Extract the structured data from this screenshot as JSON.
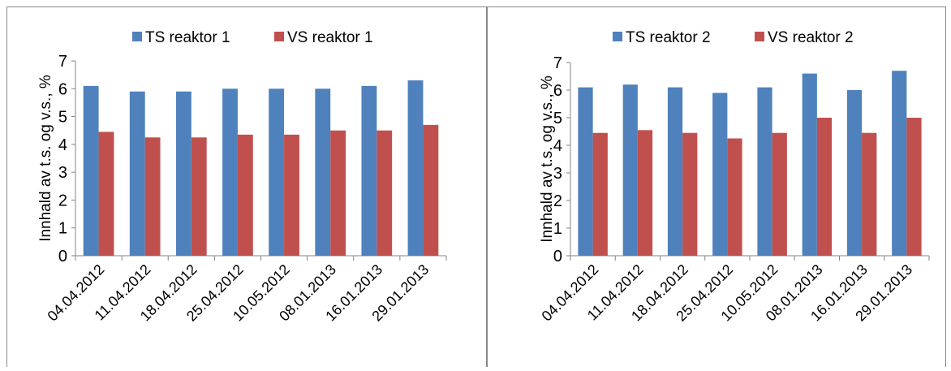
{
  "chart_data": [
    {
      "type": "bar",
      "y_label": "Innhald av t.s. og v.s., %",
      "categories": [
        "04.04.2012",
        "11.04.2012",
        "18.04.2012",
        "25.04.2012",
        "10.05.2012",
        "08.01.2013",
        "16.01.2013",
        "29.01.2013"
      ],
      "series": [
        {
          "name": "TS reaktor 1",
          "color": "#4f81bd",
          "values": [
            6.1,
            5.9,
            5.9,
            6.0,
            6.0,
            6.0,
            6.1,
            6.3
          ]
        },
        {
          "name": "VS reaktor 1",
          "color": "#c0504d",
          "values": [
            4.45,
            4.25,
            4.25,
            4.35,
            4.35,
            4.5,
            4.5,
            4.7
          ]
        }
      ],
      "ylim": [
        0,
        7
      ],
      "yticks": [
        0,
        1,
        2,
        3,
        4,
        5,
        6,
        7
      ],
      "legend": "top"
    },
    {
      "type": "bar",
      "y_label": "Innhald av t.s. og v.s., %",
      "categories": [
        "04.04.2012",
        "11.04.2012",
        "18.04.2012",
        "25.04.2012",
        "10.05.2012",
        "08.01.2013",
        "16.01.2013",
        "29.01.2013"
      ],
      "series": [
        {
          "name": "TS reaktor 2",
          "color": "#4f81bd",
          "values": [
            6.1,
            6.2,
            6.1,
            5.9,
            6.1,
            6.6,
            6.0,
            6.7
          ]
        },
        {
          "name": "VS reaktor 2",
          "color": "#c0504d",
          "values": [
            4.45,
            4.55,
            4.45,
            4.25,
            4.45,
            5.0,
            4.45,
            5.0
          ]
        }
      ],
      "ylim": [
        0,
        7
      ],
      "yticks": [
        0,
        1,
        2,
        3,
        4,
        5,
        6,
        7
      ],
      "legend": "top"
    }
  ]
}
